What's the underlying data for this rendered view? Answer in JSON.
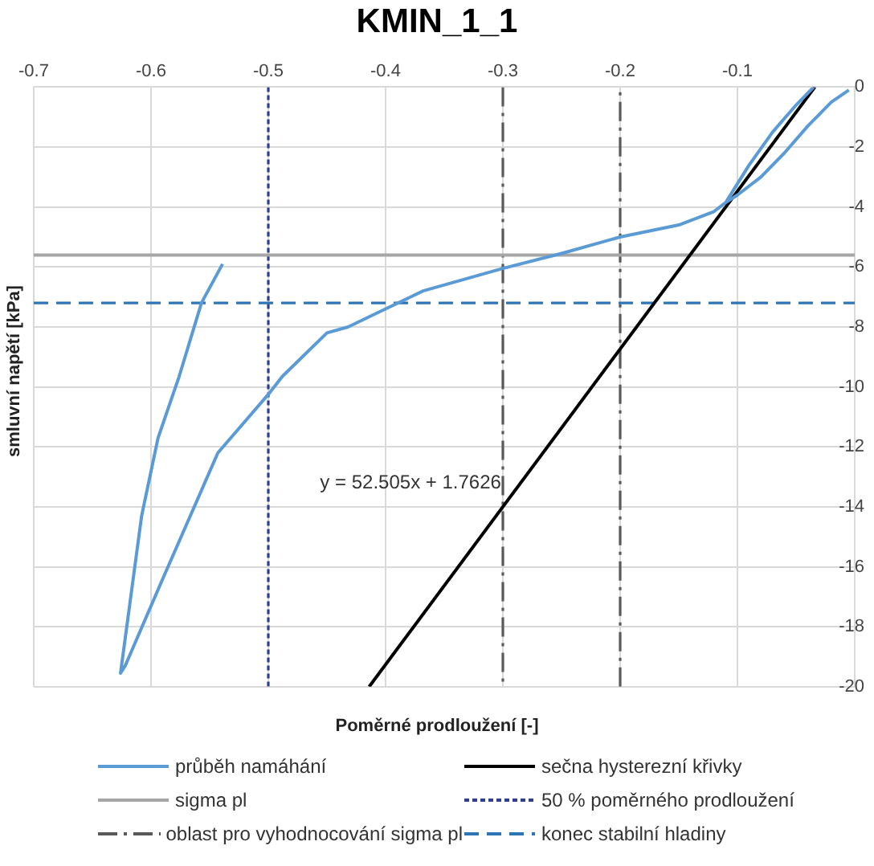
{
  "chart_data": {
    "type": "line",
    "title": "KMIN_1_1",
    "xlabel": "Poměrné prodloužení  [-]",
    "ylabel": "smluvní napětí [kPa]",
    "xlim": [
      -0.7,
      0
    ],
    "xticks": [
      -0.7,
      -0.6,
      -0.5,
      -0.4,
      -0.3,
      -0.2,
      -0.1,
      {
        "value": 0,
        "label": null
      }
    ],
    "ylim": [
      -20,
      0
    ],
    "yticks": [
      -20,
      -18,
      -16,
      -14,
      -12,
      -10,
      -8,
      -6,
      -4,
      -2,
      0
    ],
    "grid": true,
    "legend": "bottom",
    "marker": "none",
    "annotations": [
      {
        "text": "y = 52.505x + 1.7626",
        "x": -0.285,
        "y": -13.2
      }
    ],
    "series": [
      {
        "name": "průběh namáhání",
        "color": "#5b9bd5",
        "line_style": "solid",
        "x": [
          -0.005,
          -0.02,
          -0.04,
          -0.06,
          -0.08,
          -0.1,
          -0.11,
          -0.12,
          -0.15,
          -0.2,
          -0.25,
          -0.3,
          -0.368,
          -0.4,
          -0.432,
          -0.45,
          -0.488,
          -0.5,
          -0.543,
          -0.59,
          -0.622,
          -0.626,
          -0.608,
          -0.594,
          -0.576,
          -0.557,
          -0.539,
          -0.3,
          -0.11,
          -0.09,
          -0.07,
          -0.05,
          -0.035
        ],
        "values": [
          -0.1,
          -0.5,
          -1.3,
          -2.2,
          -3.0,
          -3.6,
          -3.85,
          -4.15,
          -4.6,
          -5.0,
          -5.55,
          -6.05,
          -6.8,
          -7.4,
          -8.0,
          -8.2,
          -9.65,
          -10.25,
          -12.2,
          -16.4,
          -19.3,
          -19.55,
          -14.3,
          -11.7,
          -9.65,
          -7.2,
          -5.9,
          null,
          -3.85,
          -2.6,
          -1.5,
          -0.6,
          0
        ]
      },
      {
        "name": "sečna hysterezní křivky",
        "color": "#000000",
        "line_style": "solid",
        "x": [
          -0.414,
          -0.034
        ],
        "values": [
          -20,
          0
        ]
      },
      {
        "name": "sigma pl",
        "color": "#a6a6a6",
        "line_style": "solid",
        "x": [
          -0.7,
          0
        ],
        "values": [
          -5.6,
          -5.6
        ]
      },
      {
        "name": "50 % poměrného prodloužení",
        "color": "#2f3f8f",
        "line_style": "dotted",
        "x": [
          -0.5,
          -0.5
        ],
        "values": [
          0,
          -20
        ]
      },
      {
        "name": "oblast pro vyhodnocování sigma pl",
        "color": "#595959",
        "line_style": "dashdot",
        "x": [
          -0.3,
          -0.3,
          -0.25,
          -0.2,
          -0.2
        ],
        "values": [
          0,
          -20,
          null,
          -20,
          0
        ]
      },
      {
        "name": "konec stabilní hladiny",
        "color": "#2e75b6",
        "line_style": "dashed",
        "x": [
          -0.7,
          0
        ],
        "values": [
          -7.2,
          -7.2
        ]
      }
    ]
  }
}
